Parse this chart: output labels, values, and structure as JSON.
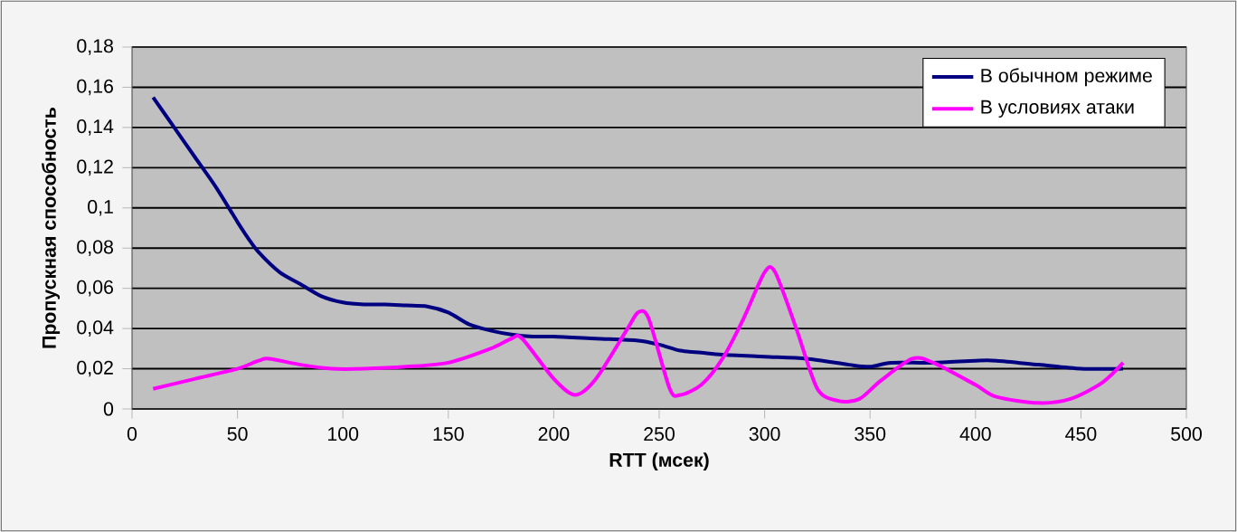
{
  "chart_data": {
    "type": "line",
    "xlabel": "RTT (мсек)",
    "ylabel": "Пропускная способность",
    "xlim": [
      0,
      500
    ],
    "xticks": [
      0,
      50,
      100,
      150,
      200,
      250,
      300,
      350,
      400,
      450,
      500
    ],
    "ylim": [
      0,
      0.18
    ],
    "yticks": [
      0,
      {
        "value": 0.02,
        "label": "0,02"
      },
      {
        "value": 0.04,
        "label": "0,04"
      },
      {
        "value": 0.06,
        "label": "0,06"
      },
      {
        "value": 0.08,
        "label": "0,08"
      },
      {
        "value": 0.1,
        "label": "0,1"
      },
      {
        "value": 0.12,
        "label": "0,12"
      },
      {
        "value": 0.14,
        "label": "0,14"
      },
      {
        "value": 0.16,
        "label": "0,16"
      },
      {
        "value": 0.18,
        "label": "0,18"
      }
    ],
    "grid": "y",
    "legend": "top right",
    "marker": "none",
    "line_style": "solid",
    "series": [
      {
        "name": "В обычном режиме",
        "color": "#000080",
        "x": [
          10,
          20,
          30,
          40,
          50,
          55,
          60,
          70,
          80,
          90,
          100,
          110,
          120,
          130,
          140,
          150,
          160,
          170,
          180,
          190,
          200,
          220,
          240,
          250,
          260,
          270,
          280,
          300,
          320,
          340,
          350,
          360,
          380,
          400,
          410,
          430,
          450,
          470
        ],
        "values": [
          0.155,
          0.14,
          0.125,
          0.11,
          0.093,
          0.085,
          0.078,
          0.068,
          0.062,
          0.056,
          0.053,
          0.052,
          0.052,
          0.0515,
          0.051,
          0.048,
          0.042,
          0.039,
          0.037,
          0.036,
          0.036,
          0.035,
          0.034,
          0.032,
          0.029,
          0.028,
          0.027,
          0.026,
          0.025,
          0.022,
          0.021,
          0.023,
          0.023,
          0.024,
          0.024,
          0.022,
          0.02,
          0.02
        ]
      },
      {
        "name": "В условиях атаки",
        "color": "#ff00ff",
        "x": [
          10,
          30,
          50,
          60,
          65,
          80,
          95,
          110,
          130,
          150,
          170,
          180,
          185,
          200,
          210,
          220,
          235,
          240,
          245,
          255,
          260,
          270,
          280,
          290,
          300,
          305,
          315,
          325,
          335,
          345,
          355,
          370,
          380,
          400,
          410,
          430,
          445,
          460,
          470
        ],
        "values": [
          0.01,
          0.015,
          0.02,
          0.024,
          0.025,
          0.022,
          0.02,
          0.02,
          0.021,
          0.023,
          0.03,
          0.035,
          0.035,
          0.015,
          0.007,
          0.015,
          0.04,
          0.048,
          0.045,
          0.01,
          0.007,
          0.012,
          0.025,
          0.045,
          0.068,
          0.068,
          0.04,
          0.01,
          0.004,
          0.005,
          0.014,
          0.025,
          0.023,
          0.012,
          0.006,
          0.003,
          0.005,
          0.013,
          0.023
        ]
      }
    ]
  }
}
